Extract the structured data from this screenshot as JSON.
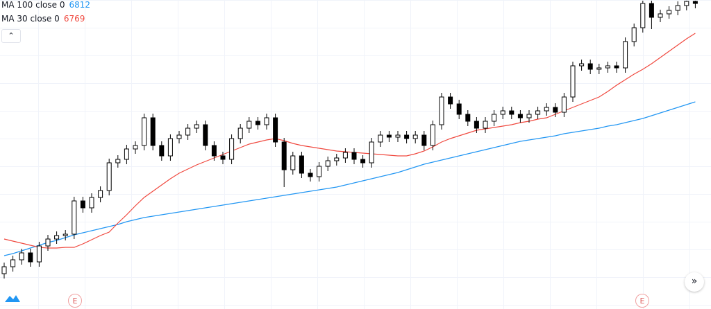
{
  "chart_data": {
    "type": "candlestick",
    "ylim": [
      6554,
      7000
    ],
    "up_color": "#ffffff",
    "down_color": "#000000",
    "wick_color": "#000000",
    "candles": [
      [
        6605,
        6621,
        6598,
        6615
      ],
      [
        6615,
        6631,
        6608,
        6625
      ],
      [
        6625,
        6641,
        6618,
        6635
      ],
      [
        6635,
        6641,
        6615,
        6622
      ],
      [
        6622,
        6651,
        6615,
        6645
      ],
      [
        6645,
        6661,
        6638,
        6655
      ],
      [
        6655,
        6666,
        6648,
        6660
      ],
      [
        6660,
        6668,
        6653,
        6662
      ],
      [
        6662,
        6716,
        6655,
        6710
      ],
      [
        6710,
        6716,
        6693,
        6700
      ],
      [
        6700,
        6721,
        6693,
        6715
      ],
      [
        6715,
        6731,
        6708,
        6725
      ],
      [
        6725,
        6771,
        6718,
        6765
      ],
      [
        6765,
        6776,
        6758,
        6770
      ],
      [
        6770,
        6791,
        6763,
        6785
      ],
      [
        6785,
        6796,
        6778,
        6790
      ],
      [
        6790,
        6836,
        6783,
        6830
      ],
      [
        6830,
        6836,
        6783,
        6790
      ],
      [
        6790,
        6796,
        6768,
        6775
      ],
      [
        6775,
        6806,
        6768,
        6800
      ],
      [
        6800,
        6811,
        6793,
        6805
      ],
      [
        6805,
        6821,
        6798,
        6815
      ],
      [
        6815,
        6826,
        6808,
        6820
      ],
      [
        6820,
        6826,
        6783,
        6790
      ],
      [
        6790,
        6796,
        6768,
        6775
      ],
      [
        6775,
        6781,
        6763,
        6770
      ],
      [
        6770,
        6806,
        6763,
        6800
      ],
      [
        6800,
        6821,
        6793,
        6815
      ],
      [
        6815,
        6831,
        6808,
        6825
      ],
      [
        6825,
        6831,
        6813,
        6820
      ],
      [
        6820,
        6836,
        6813,
        6830
      ],
      [
        6830,
        6836,
        6788,
        6795
      ],
      [
        6795,
        6801,
        6730,
        6755
      ],
      [
        6755,
        6781,
        6748,
        6775
      ],
      [
        6775,
        6781,
        6743,
        6750
      ],
      [
        6750,
        6756,
        6738,
        6745
      ],
      [
        6745,
        6766,
        6738,
        6760
      ],
      [
        6760,
        6774,
        6753,
        6768
      ],
      [
        6768,
        6778,
        6761,
        6772
      ],
      [
        6772,
        6786,
        6765,
        6780
      ],
      [
        6780,
        6786,
        6763,
        6770
      ],
      [
        6770,
        6776,
        6758,
        6765
      ],
      [
        6765,
        6801,
        6758,
        6795
      ],
      [
        6795,
        6811,
        6788,
        6805
      ],
      [
        6805,
        6811,
        6795,
        6802
      ],
      [
        6802,
        6811,
        6795,
        6805
      ],
      [
        6805,
        6811,
        6793,
        6800
      ],
      [
        6800,
        6811,
        6793,
        6805
      ],
      [
        6805,
        6811,
        6783,
        6790
      ],
      [
        6790,
        6826,
        6783,
        6820
      ],
      [
        6820,
        6866,
        6813,
        6860
      ],
      [
        6860,
        6866,
        6843,
        6850
      ],
      [
        6850,
        6856,
        6828,
        6835
      ],
      [
        6835,
        6841,
        6818,
        6825
      ],
      [
        6825,
        6831,
        6808,
        6815
      ],
      [
        6815,
        6831,
        6808,
        6825
      ],
      [
        6825,
        6841,
        6818,
        6835
      ],
      [
        6835,
        6846,
        6828,
        6840
      ],
      [
        6840,
        6846,
        6828,
        6835
      ],
      [
        6835,
        6841,
        6823,
        6830
      ],
      [
        6830,
        6841,
        6823,
        6835
      ],
      [
        6835,
        6846,
        6828,
        6840
      ],
      [
        6840,
        6851,
        6833,
        6845
      ],
      [
        6845,
        6851,
        6831,
        6838
      ],
      [
        6838,
        6866,
        6831,
        6860
      ],
      [
        6860,
        6911,
        6853,
        6905
      ],
      [
        6905,
        6914,
        6898,
        6908
      ],
      [
        6908,
        6914,
        6893,
        6900
      ],
      [
        6900,
        6908,
        6893,
        6902
      ],
      [
        6902,
        6911,
        6895,
        6905
      ],
      [
        6905,
        6911,
        6895,
        6902
      ],
      [
        6902,
        6946,
        6895,
        6940
      ],
      [
        6940,
        6966,
        6933,
        6960
      ],
      [
        6960,
        6999,
        6953,
        6995
      ],
      [
        6995,
        6999,
        6958,
        6975
      ],
      [
        6975,
        6986,
        6968,
        6980
      ],
      [
        6980,
        6991,
        6973,
        6985
      ],
      [
        6985,
        6998,
        6978,
        6992
      ],
      [
        6992,
        6999,
        6985,
        6998
      ],
      [
        6998,
        6999,
        6988,
        6995
      ]
    ],
    "series": [
      {
        "name": "MA 100 close 0",
        "legend_value": 6812,
        "color": "#2196f3",
        "values": [
          6631,
          6634,
          6638,
          6642,
          6646,
          6650,
          6653,
          6657,
          6661,
          6664,
          6667,
          6670,
          6673,
          6676,
          6680,
          6683,
          6686,
          6688,
          6690,
          6692,
          6694,
          6696,
          6698,
          6700,
          6702,
          6704,
          6706,
          6708,
          6710,
          6712,
          6714,
          6716,
          6718,
          6720,
          6722,
          6724,
          6726,
          6728,
          6730,
          6733,
          6736,
          6739,
          6742,
          6745,
          6748,
          6751,
          6755,
          6759,
          6763,
          6766,
          6769,
          6772,
          6775,
          6778,
          6781,
          6784,
          6787,
          6790,
          6793,
          6796,
          6798,
          6800,
          6802,
          6804,
          6807,
          6809,
          6811,
          6813,
          6815,
          6818,
          6820,
          6823,
          6826,
          6829,
          6833,
          6837,
          6841,
          6845,
          6849,
          6853
        ]
      },
      {
        "name": "MA 30 close 0",
        "legend_value": 6769,
        "color": "#f0483e",
        "values": [
          6655,
          6652,
          6649,
          6646,
          6643,
          6642,
          6642,
          6643,
          6643,
          6648,
          6654,
          6660,
          6665,
          6678,
          6690,
          6703,
          6715,
          6724,
          6733,
          6742,
          6750,
          6756,
          6762,
          6767,
          6772,
          6777,
          6782,
          6787,
          6792,
          6795,
          6798,
          6800,
          6797,
          6793,
          6790,
          6788,
          6786,
          6784,
          6782,
          6781,
          6780,
          6779,
          6778,
          6777,
          6776,
          6775,
          6775,
          6778,
          6782,
          6788,
          6795,
          6800,
          6804,
          6808,
          6812,
          6814,
          6816,
          6818,
          6820,
          6823,
          6825,
          6828,
          6830,
          6835,
          6840,
          6845,
          6850,
          6855,
          6860,
          6868,
          6877,
          6885,
          6893,
          6900,
          6908,
          6917,
          6926,
          6935,
          6944,
          6952
        ]
      }
    ],
    "event_markers": [
      "E",
      "E"
    ]
  }
}
